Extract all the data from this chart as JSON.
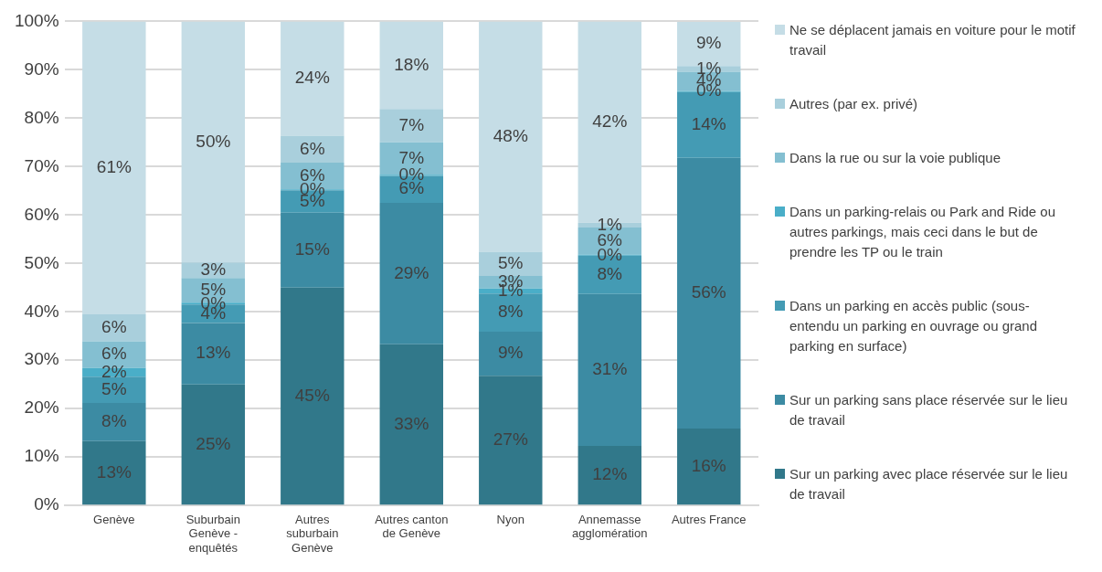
{
  "chart_data": {
    "type": "bar",
    "stacked": true,
    "categories": [
      "Genève",
      "Suburbain Genève - enquêtés",
      "Autres suburbain Genève",
      "Autres canton de Genève",
      "Nyon",
      "Annemasse agglomération",
      "Autres France"
    ],
    "ylim": [
      0,
      100
    ],
    "yticks": [
      {
        "value": 0,
        "label": "0%"
      },
      {
        "value": 10,
        "label": "10%"
      },
      {
        "value": 20,
        "label": "20%"
      },
      {
        "value": 30,
        "label": "30%"
      },
      {
        "value": 40,
        "label": "40%"
      },
      {
        "value": 50,
        "label": "50%"
      },
      {
        "value": 60,
        "label": "60%"
      },
      {
        "value": 70,
        "label": "70%"
      },
      {
        "value": 80,
        "label": "80%"
      },
      {
        "value": 90,
        "label": "90%"
      },
      {
        "value": 100,
        "label": "100%"
      }
    ],
    "grid": "y",
    "legend": "right",
    "series": [
      {
        "name": "Sur un parking avec place réservée sur le lieu de travail",
        "color": "#31788a",
        "values": [
          13.3,
          25.0,
          45.0,
          33.3,
          26.8,
          12.3,
          15.9
        ],
        "value_labels": [
          "13%",
          "25%",
          "45%",
          "33%",
          "27%",
          "12%",
          "16%"
        ]
      },
      {
        "name": "Sur un parking sans place réservée sur le lieu de travail",
        "color": "#3c8ba3",
        "values": [
          7.9,
          12.7,
          15.5,
          29.2,
          9.1,
          31.4,
          55.9
        ],
        "value_labels": [
          "8%",
          "13%",
          "15%",
          "29%",
          "9%",
          "31%",
          "56%"
        ]
      },
      {
        "name": "Dans un parking en accès public (sous-entendu un parking en ouvrage ou grand parking en surface)",
        "color": "#449bb4",
        "values": [
          5.4,
          3.8,
          4.6,
          5.6,
          7.9,
          7.9,
          13.6
        ],
        "value_labels": [
          "5%",
          "4%",
          "5%",
          "6%",
          "8%",
          "8%",
          "14%"
        ]
      },
      {
        "name": "Dans un parking-relais ou Park and Ride ou autres parkings, mais ceci dans le but de prendre les TP ou le train",
        "color": "#4aaec8",
        "values": [
          1.8,
          0.4,
          0.2,
          0.2,
          1.0,
          0.2,
          0.2
        ],
        "value_labels": [
          "2%",
          "0%",
          "0%",
          "0%",
          "1%",
          "0%",
          "0%"
        ]
      },
      {
        "name": "Dans la rue ou sur la voie publique",
        "color": "#84bfd1",
        "values": [
          5.5,
          5.1,
          5.5,
          6.7,
          2.6,
          5.6,
          4.0
        ],
        "value_labels": [
          "6%",
          "5%",
          "6%",
          "7%",
          "3%",
          "6%",
          "4%"
        ]
      },
      {
        "name": "Autres (par ex. privé)",
        "color": "#a9cfdc",
        "values": [
          5.6,
          3.2,
          5.6,
          6.9,
          5.0,
          1.0,
          1.2
        ],
        "value_labels": [
          "6%",
          "3%",
          "6%",
          "7%",
          "5%",
          "1%",
          "1%"
        ]
      },
      {
        "name": "Ne se déplacent jamais en voiture pour le motif travail",
        "color": "#c5dde6",
        "values": [
          60.5,
          49.8,
          23.6,
          18.1,
          47.6,
          41.6,
          9.1
        ],
        "value_labels": [
          "61%",
          "50%",
          "24%",
          "18%",
          "48%",
          "42%",
          "9%"
        ]
      }
    ]
  }
}
